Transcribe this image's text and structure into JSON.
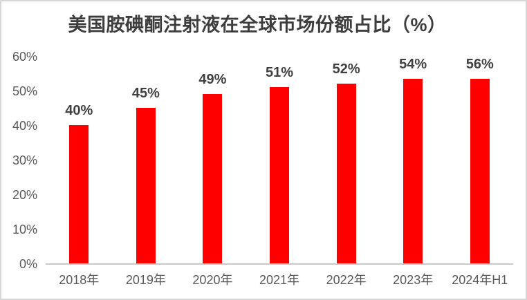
{
  "title": "美国胺碘酮注射液在全球市场份额占比（%）",
  "chart_data": {
    "type": "bar",
    "title": "美国胺碘酮注射液在全球市场份额占比（%）",
    "categories": [
      "2018年",
      "2019年",
      "2020年",
      "2021年",
      "2022年",
      "2023年",
      "2024年H1"
    ],
    "values": [
      40,
      45,
      49,
      51,
      52,
      54,
      56
    ],
    "data_labels": [
      "40%",
      "45%",
      "49%",
      "51%",
      "52%",
      "54%",
      "56%"
    ],
    "y_ticks": [
      {
        "label": "0%",
        "value": 0
      },
      {
        "label": "10%",
        "value": 10
      },
      {
        "label": "20%",
        "value": 20
      },
      {
        "label": "30%",
        "value": 30
      },
      {
        "label": "40%",
        "value": 40
      },
      {
        "label": "50%",
        "value": 50
      },
      {
        "label": "60%",
        "value": 60
      }
    ],
    "xlabel": "",
    "ylabel": "",
    "ylim": [
      0,
      60
    ],
    "grid": false,
    "legend": "none",
    "bar_color": "#fe0000",
    "title_color": "#3d3d3d",
    "data_label_color": "#404040",
    "axis_text_color": "#595959",
    "axis_line_color": "#c9c9c9",
    "frame_border_color": "#d6d6d6"
  }
}
